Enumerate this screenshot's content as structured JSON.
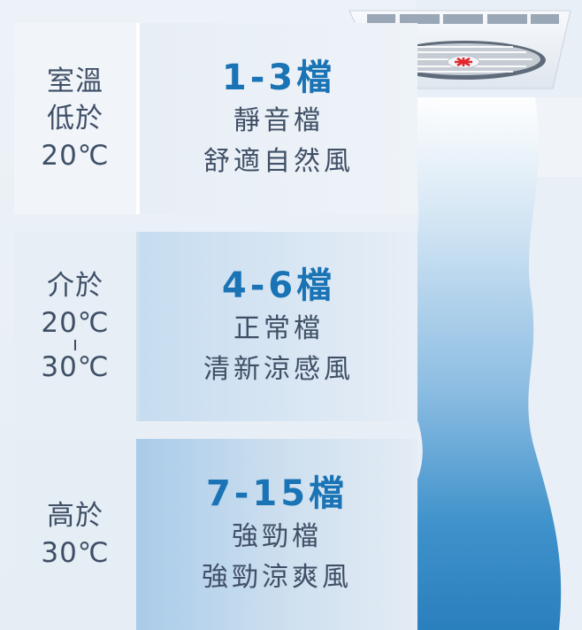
{
  "panels": [
    {
      "condition_lines": [
        "室溫",
        "低於",
        "20℃"
      ],
      "speed": "1-3檔",
      "mode": "靜音檔",
      "feeling": "舒適自然風"
    },
    {
      "condition_lines": [
        "介於",
        "20℃",
        "30℃"
      ],
      "speed": "4-6檔",
      "mode": "正常檔",
      "feeling": "清新涼感風"
    },
    {
      "condition_lines": [
        "高於",
        "30℃"
      ],
      "speed": "7-15檔",
      "mode": "強勁檔",
      "feeling": "強勁涼爽風"
    }
  ],
  "colors": {
    "accent_blue": "#1a73b5",
    "text_dark": "#3f4f66",
    "airflow_blue": "#2e86c1",
    "fan_red": "#e0282e"
  },
  "icons": [
    "ceiling-fan-icon",
    "airflow-wave"
  ]
}
